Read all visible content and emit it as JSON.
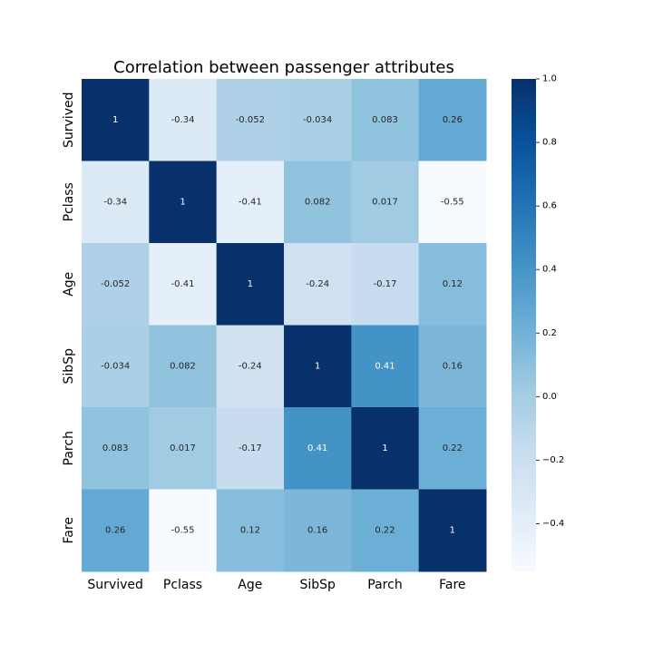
{
  "chart_data": {
    "type": "heatmap",
    "title": "Correlation between passenger attributes",
    "x_labels": [
      "Survived",
      "Pclass",
      "Age",
      "SibSp",
      "Parch",
      "Fare"
    ],
    "y_labels": [
      "Survived",
      "Pclass",
      "Age",
      "SibSp",
      "Parch",
      "Fare"
    ],
    "values": [
      [
        1,
        -0.34,
        -0.052,
        -0.034,
        0.083,
        0.26
      ],
      [
        -0.34,
        1,
        -0.41,
        0.082,
        0.017,
        -0.55
      ],
      [
        -0.052,
        -0.41,
        1,
        -0.24,
        -0.17,
        0.12
      ],
      [
        -0.034,
        0.082,
        -0.24,
        1,
        0.41,
        0.16
      ],
      [
        0.083,
        0.017,
        -0.17,
        0.41,
        1,
        0.22
      ],
      [
        0.26,
        -0.55,
        0.12,
        0.16,
        0.22,
        1
      ]
    ],
    "annotations": [
      [
        "1",
        "-0.34",
        "-0.052",
        "-0.034",
        "0.083",
        "0.26"
      ],
      [
        "-0.34",
        "1",
        "-0.41",
        "0.082",
        "0.017",
        "-0.55"
      ],
      [
        "-0.052",
        "-0.41",
        "1",
        "-0.24",
        "-0.17",
        "0.12"
      ],
      [
        "-0.034",
        "0.082",
        "-0.24",
        "1",
        "0.41",
        "0.16"
      ],
      [
        "0.083",
        "0.017",
        "-0.17",
        "0.41",
        "1",
        "0.22"
      ],
      [
        "0.26",
        "-0.55",
        "0.12",
        "0.16",
        "0.22",
        "1"
      ]
    ],
    "colormap": "Blues",
    "vmin": -0.55,
    "vmax": 1.0,
    "colorbar_ticks": [
      1.0,
      0.8,
      0.6,
      0.4,
      0.2,
      0.0,
      -0.2,
      -0.4
    ],
    "colorbar_tick_labels": [
      "1.0",
      "0.8",
      "0.6",
      "0.4",
      "0.2",
      "0.0",
      "−0.2",
      "−0.4"
    ],
    "legend_position": "right"
  }
}
